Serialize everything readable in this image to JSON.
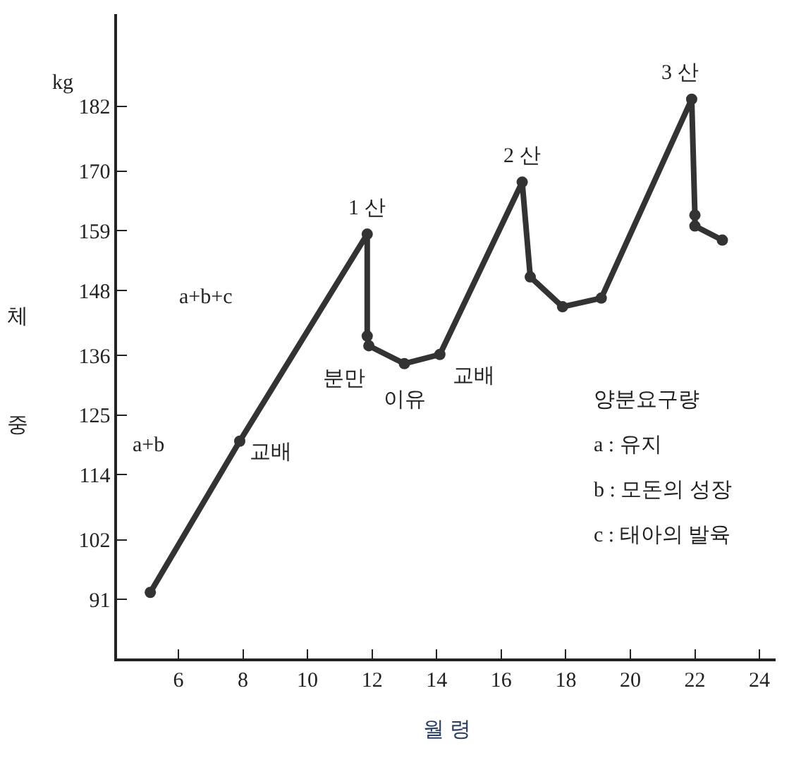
{
  "chart_data": {
    "type": "line",
    "xlabel": "월 령",
    "x": [
      5.13,
      7.9,
      11.85,
      11.85,
      11.9,
      13.0,
      14.1,
      16.65,
      16.9,
      17.9,
      19.1,
      21.9,
      22.0,
      22.0,
      22.85
    ],
    "series": [
      {
        "color": "#333333",
        "values": [
          92.3,
          120.2,
          158.4,
          139.6,
          137.8,
          134.5,
          136.2,
          168,
          150.5,
          145,
          146.6,
          183.3,
          161.9,
          159.9,
          157.3
        ]
      }
    ],
    "xlim": [
      4.1,
      24.5
    ],
    "xticks": [
      6,
      8,
      10,
      12,
      14,
      16,
      18,
      20,
      22,
      24
    ],
    "ylim": [
      80.1,
      199
    ],
    "yticks": [
      91,
      102,
      114,
      125,
      136,
      148,
      159,
      170,
      182
    ],
    "marker": "circle",
    "line_style": "solid",
    "annotations": [
      "kg",
      {
        "text": "1 산",
        "x": 11.85,
        "y": 158.4
      },
      {
        "text": "2 산",
        "x": 16.65,
        "y": 168
      },
      {
        "text": "3 산",
        "x": 21.9,
        "y": 183.3
      },
      {
        "text": "교배",
        "x": 7.9,
        "y": 120.2
      },
      {
        "text": "분만",
        "x": 11.9,
        "y": 137.8
      },
      {
        "text": "이유",
        "x": 13.0,
        "y": 134.5
      },
      {
        "text": "교배",
        "x": 14.1,
        "y": 136.2
      },
      "a+b",
      "a+b+c",
      "양분요구량",
      "a : 유지",
      "b : 모돈의 성장",
      "c : 태아의 발육",
      "체",
      "중"
    ]
  }
}
